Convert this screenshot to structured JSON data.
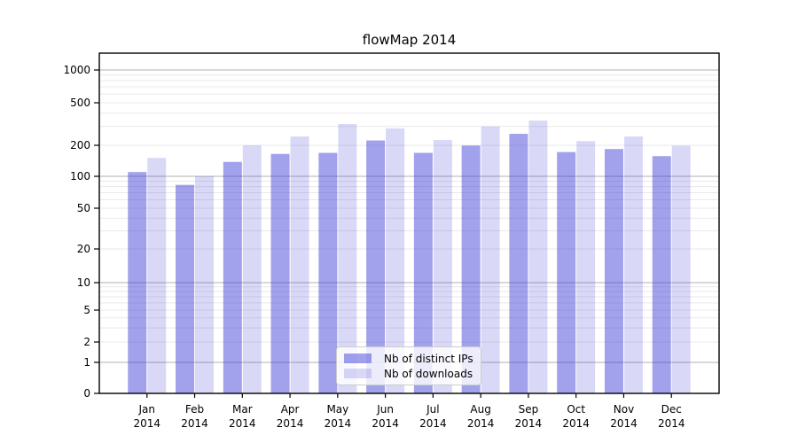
{
  "title": "flowMap 2014",
  "legend": {
    "items": [
      {
        "label": "Nb of distinct IPs"
      },
      {
        "label": "Nb of downloads"
      }
    ]
  },
  "chart_data": {
    "type": "bar",
    "title": "flowMap 2014",
    "yscale": "log-with-zero",
    "xlabel": "",
    "ylabel": "",
    "grid": "on",
    "legend_position": "bottom-center-inside",
    "categories": [
      "Jan 2014",
      "Feb 2014",
      "Mar 2014",
      "Apr 2014",
      "May 2014",
      "Jun 2014",
      "Jul 2014",
      "Aug 2014",
      "Sep 2014",
      "Oct 2014",
      "Nov 2014",
      "Dec 2014"
    ],
    "month_line1": [
      "Jan",
      "Feb",
      "Mar",
      "Apr",
      "May",
      "Jun",
      "Jul",
      "Aug",
      "Sep",
      "Oct",
      "Nov",
      "Dec"
    ],
    "month_line2": [
      "2014",
      "2014",
      "2014",
      "2014",
      "2014",
      "2014",
      "2014",
      "2014",
      "2014",
      "2014",
      "2014",
      "2014"
    ],
    "series": [
      {
        "name": "Nb of distinct IPs",
        "color": "rgba(55,55,215,0.47)",
        "color_hex": "#a1a1ec",
        "values": [
          110,
          83,
          138,
          165,
          169,
          222,
          169,
          199,
          256,
          172,
          184,
          157
        ]
      },
      {
        "name": "Nb of downloads",
        "color": "rgba(55,55,215,0.19)",
        "color_hex": "#d9d9f7",
        "values": [
          151,
          100,
          200,
          242,
          316,
          288,
          224,
          300,
          341,
          219,
          242,
          198
        ]
      }
    ],
    "y_ticks": [
      1000,
      500,
      200,
      100,
      50,
      20,
      10,
      5,
      2,
      1,
      0
    ],
    "ylim": [
      0,
      1600
    ],
    "colors": {
      "grid_major": "#b0b0b0",
      "grid_minor": "#e9e9e9",
      "axis": "#000000",
      "text": "#000000",
      "background": "#ffffff"
    }
  }
}
